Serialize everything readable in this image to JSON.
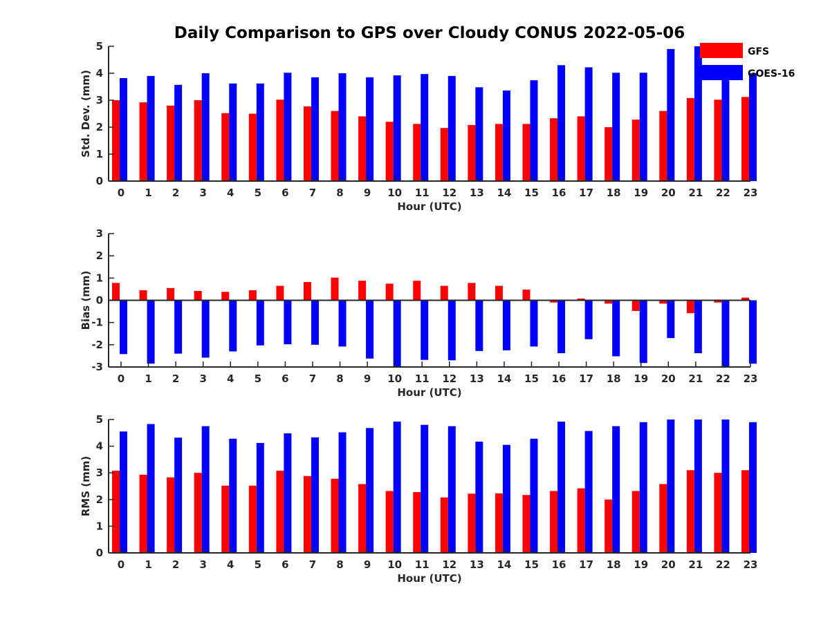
{
  "figure": {
    "title": "Daily Comparison to GPS over Cloudy CONUS 2022-05-06"
  },
  "legend": {
    "placement": "top-right",
    "entries": [
      {
        "name": "GFS",
        "color": "#ff0000"
      },
      {
        "name": "GOES-16",
        "color": "#0000ff"
      }
    ]
  },
  "chart_data": [
    {
      "type": "bar",
      "categories": [
        "0",
        "1",
        "2",
        "3",
        "4",
        "5",
        "6",
        "7",
        "8",
        "9",
        "10",
        "11",
        "12",
        "13",
        "14",
        "15",
        "16",
        "17",
        "18",
        "19",
        "20",
        "21",
        "22",
        "23"
      ],
      "xlabel": "Hour (UTC)",
      "ylabel": "Std. Dev. (mm)",
      "ylim": [
        0,
        5
      ],
      "yticks": [
        0,
        1,
        2,
        3,
        4,
        5
      ],
      "series": [
        {
          "name": "GFS",
          "color": "#ff0000",
          "values": [
            3.0,
            2.92,
            2.8,
            3.0,
            2.52,
            2.5,
            3.02,
            2.77,
            2.6,
            2.4,
            2.2,
            2.12,
            1.97,
            2.08,
            2.12,
            2.12,
            2.33,
            2.4,
            2.0,
            2.28,
            2.6,
            3.08,
            3.02,
            3.12
          ]
        },
        {
          "name": "GOES-16",
          "color": "#0000ff",
          "values": [
            3.82,
            3.9,
            3.57,
            4.0,
            3.62,
            3.62,
            4.02,
            3.85,
            4.0,
            3.85,
            3.92,
            3.97,
            3.9,
            3.48,
            3.36,
            3.74,
            4.3,
            4.22,
            4.02,
            4.02,
            4.9,
            5.0,
            4.02,
            4.0
          ]
        }
      ]
    },
    {
      "type": "bar",
      "categories": [
        "0",
        "1",
        "2",
        "3",
        "4",
        "5",
        "6",
        "7",
        "8",
        "9",
        "10",
        "11",
        "12",
        "13",
        "14",
        "15",
        "16",
        "17",
        "18",
        "19",
        "20",
        "21",
        "22",
        "23"
      ],
      "xlabel": "Hour (UTC)",
      "ylabel": "Bias (mm)",
      "ylim": [
        -3,
        3
      ],
      "yticks": [
        -3,
        -2,
        -1,
        0,
        1,
        2,
        3
      ],
      "series": [
        {
          "name": "GFS",
          "color": "#ff0000",
          "values": [
            0.78,
            0.45,
            0.55,
            0.42,
            0.38,
            0.45,
            0.65,
            0.82,
            1.02,
            0.88,
            0.75,
            0.88,
            0.65,
            0.78,
            0.65,
            0.48,
            -0.1,
            0.08,
            -0.15,
            -0.48,
            -0.15,
            -0.58,
            -0.1,
            0.12
          ]
        },
        {
          "name": "GOES-16",
          "color": "#0000ff",
          "values": [
            -2.42,
            -2.85,
            -2.4,
            -2.58,
            -2.3,
            -2.03,
            -1.98,
            -2.0,
            -2.08,
            -2.62,
            -3.0,
            -2.68,
            -2.7,
            -2.28,
            -2.25,
            -2.08,
            -2.38,
            -1.75,
            -2.52,
            -2.82,
            -1.7,
            -2.38,
            -3.0,
            -2.85
          ]
        }
      ]
    },
    {
      "type": "bar",
      "categories": [
        "0",
        "1",
        "2",
        "3",
        "4",
        "5",
        "6",
        "7",
        "8",
        "9",
        "10",
        "11",
        "12",
        "13",
        "14",
        "15",
        "16",
        "17",
        "18",
        "19",
        "20",
        "21",
        "22",
        "23"
      ],
      "xlabel": "Hour (UTC)",
      "ylabel": "RMS (mm)",
      "ylim": [
        0,
        5
      ],
      "yticks": [
        0,
        1,
        2,
        3,
        4,
        5
      ],
      "series": [
        {
          "name": "GFS",
          "color": "#ff0000",
          "values": [
            3.08,
            2.93,
            2.83,
            3.0,
            2.52,
            2.52,
            3.08,
            2.88,
            2.78,
            2.58,
            2.32,
            2.28,
            2.08,
            2.22,
            2.23,
            2.17,
            2.32,
            2.42,
            2.0,
            2.32,
            2.58,
            3.1,
            3.0,
            3.1
          ]
        },
        {
          "name": "GOES-16",
          "color": "#0000ff",
          "values": [
            4.55,
            4.83,
            4.32,
            4.75,
            4.28,
            4.12,
            4.48,
            4.33,
            4.52,
            4.68,
            4.92,
            4.8,
            4.75,
            4.17,
            4.05,
            4.28,
            4.92,
            4.57,
            4.75,
            4.9,
            5.0,
            5.0,
            5.0,
            4.9
          ]
        }
      ]
    }
  ]
}
